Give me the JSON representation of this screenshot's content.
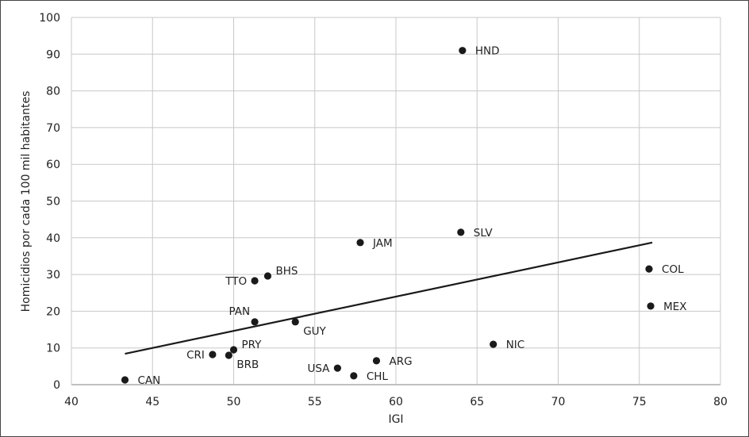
{
  "chart_data": {
    "type": "scatter",
    "title": "",
    "xlabel": "IGI",
    "ylabel": "Homicidios por cada 100 mil habitantes",
    "xlim": [
      40,
      80
    ],
    "ylim": [
      0,
      100
    ],
    "xticks": [
      "40",
      "45",
      "50",
      "55",
      "60",
      "65",
      "70",
      "75",
      "80"
    ],
    "yticks": [
      "0",
      "10",
      "20",
      "30",
      "40",
      "50",
      "60",
      "70",
      "80",
      "90",
      "100"
    ],
    "grid": true,
    "points": [
      {
        "label": "HND",
        "x": 64.1,
        "y": 91.0,
        "label_pos": "right"
      },
      {
        "label": "SLV",
        "x": 64.0,
        "y": 41.5,
        "label_pos": "right"
      },
      {
        "label": "JAM",
        "x": 57.8,
        "y": 38.7,
        "label_pos": "right"
      },
      {
        "label": "BHS",
        "x": 52.1,
        "y": 29.6,
        "label_pos": "upper-right"
      },
      {
        "label": "TTO",
        "x": 51.3,
        "y": 28.3,
        "label_pos": "left"
      },
      {
        "label": "PAN",
        "x": 51.3,
        "y": 17.1,
        "label_pos": "upper-left"
      },
      {
        "label": "GUY",
        "x": 53.8,
        "y": 17.1,
        "label_pos": "lower-right"
      },
      {
        "label": "PRY",
        "x": 50.0,
        "y": 9.5,
        "label_pos": "upper-right"
      },
      {
        "label": "CRI",
        "x": 48.7,
        "y": 8.2,
        "label_pos": "left"
      },
      {
        "label": "BRB",
        "x": 49.7,
        "y": 8.0,
        "label_pos": "lower-right"
      },
      {
        "label": "CAN",
        "x": 43.3,
        "y": 1.3,
        "label_pos": "right"
      },
      {
        "label": "USA",
        "x": 56.4,
        "y": 4.5,
        "label_pos": "left"
      },
      {
        "label": "CHL",
        "x": 57.4,
        "y": 2.4,
        "label_pos": "right"
      },
      {
        "label": "ARG",
        "x": 58.8,
        "y": 6.5,
        "label_pos": "right"
      },
      {
        "label": "NIC",
        "x": 66.0,
        "y": 11.0,
        "label_pos": "right"
      },
      {
        "label": "COL",
        "x": 75.6,
        "y": 31.5,
        "label_pos": "right"
      },
      {
        "label": "MEX",
        "x": 75.7,
        "y": 21.4,
        "label_pos": "right"
      }
    ],
    "trendline": {
      "x": [
        43.3,
        75.8
      ],
      "y": [
        8.4,
        38.7
      ]
    },
    "colors": {
      "point": "#1a1a1a",
      "grid": "#c8c8c8",
      "axis": "#bfbfbf",
      "trend": "#1a1a1a"
    }
  }
}
